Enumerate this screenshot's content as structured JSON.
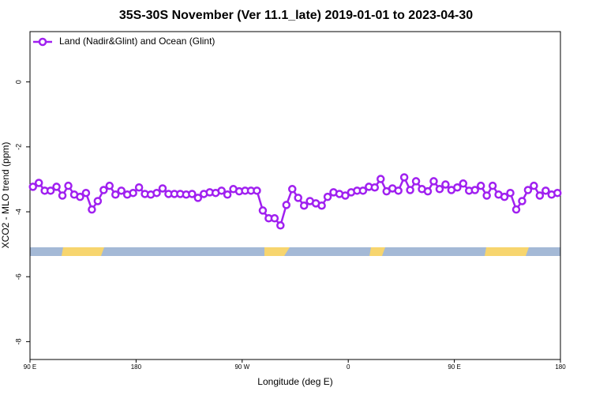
{
  "chart_data": {
    "type": "line",
    "title": "35S-30S November (Ver 11.1_late)   2019-01-01 to 2023-04-30",
    "xlabel": "Longitude (deg E)",
    "ylabel": "XCO2 - MLO trend (ppm)",
    "x": [
      92.5,
      97.5,
      102.5,
      107.5,
      112.5,
      117.5,
      122.5,
      127.5,
      132.5,
      137.5,
      142.5,
      147.5,
      152.5,
      157.5,
      162.5,
      167.5,
      172.5,
      177.5,
      182.5,
      187.5,
      192.5,
      197.5,
      202.5,
      207.5,
      212.5,
      217.5,
      222.5,
      227.5,
      232.5,
      237.5,
      242.5,
      247.5,
      252.5,
      257.5,
      262.5,
      267.5,
      272.5,
      277.5,
      282.5,
      287.5,
      292.5,
      297.5,
      302.5,
      307.5,
      312.5,
      317.5,
      322.5,
      327.5,
      332.5,
      337.5,
      342.5,
      347.5,
      352.5,
      357.5,
      362.5,
      367.5,
      372.5,
      377.5,
      382.5,
      387.5,
      392.5,
      397.5,
      402.5,
      407.5,
      412.5,
      417.5,
      422.5,
      427.5,
      432.5,
      437.5,
      442.5,
      447.5,
      452.5,
      457.5,
      462.5,
      467.5,
      472.5,
      477.5,
      482.5,
      487.5,
      492.5,
      497.5,
      502.5,
      507.5,
      512.5,
      517.5,
      522.5,
      527.5,
      532.5,
      537.5
    ],
    "series": [
      {
        "name": "Land (Nadir&Glint) and Ocean (Glint)",
        "color": "#a020f0",
        "values": [
          -3.23,
          -3.11,
          -3.35,
          -3.35,
          -3.23,
          -3.5,
          -3.2,
          -3.47,
          -3.54,
          -3.42,
          -3.93,
          -3.67,
          -3.33,
          -3.2,
          -3.47,
          -3.35,
          -3.47,
          -3.42,
          -3.25,
          -3.45,
          -3.47,
          -3.42,
          -3.28,
          -3.45,
          -3.45,
          -3.45,
          -3.47,
          -3.45,
          -3.57,
          -3.45,
          -3.4,
          -3.42,
          -3.35,
          -3.47,
          -3.3,
          -3.37,
          -3.35,
          -3.35,
          -3.35,
          -3.96,
          -4.2,
          -4.2,
          -4.42,
          -3.79,
          -3.3,
          -3.57,
          -3.81,
          -3.67,
          -3.74,
          -3.81,
          -3.54,
          -3.4,
          -3.45,
          -3.5,
          -3.4,
          -3.35,
          -3.35,
          -3.23,
          -3.25,
          -2.99,
          -3.37,
          -3.28,
          -3.35,
          -2.94,
          -3.33,
          -3.06,
          -3.3,
          -3.37,
          -3.06,
          -3.3,
          -3.16,
          -3.33,
          -3.25,
          -3.13,
          -3.35,
          -3.33,
          -3.2,
          -3.5,
          -3.2,
          -3.47,
          -3.54,
          -3.42,
          -3.93,
          -3.67,
          -3.33,
          -3.2,
          -3.5,
          -3.35,
          -3.47,
          -3.42
        ]
      }
    ],
    "xlim": [
      90,
      540
    ],
    "xticks": [
      {
        "value": 90,
        "label": "90 E"
      },
      {
        "value": 180,
        "label": "180"
      },
      {
        "value": 270,
        "label": "90 W"
      },
      {
        "value": 360,
        "label": "0"
      },
      {
        "value": 450,
        "label": "90 E"
      },
      {
        "value": 540,
        "label": "180"
      }
    ],
    "ylim": [
      -8.55,
      1.55
    ],
    "yticks": [
      0,
      -2,
      -4,
      -6,
      -8
    ],
    "legend": "upper left"
  }
}
